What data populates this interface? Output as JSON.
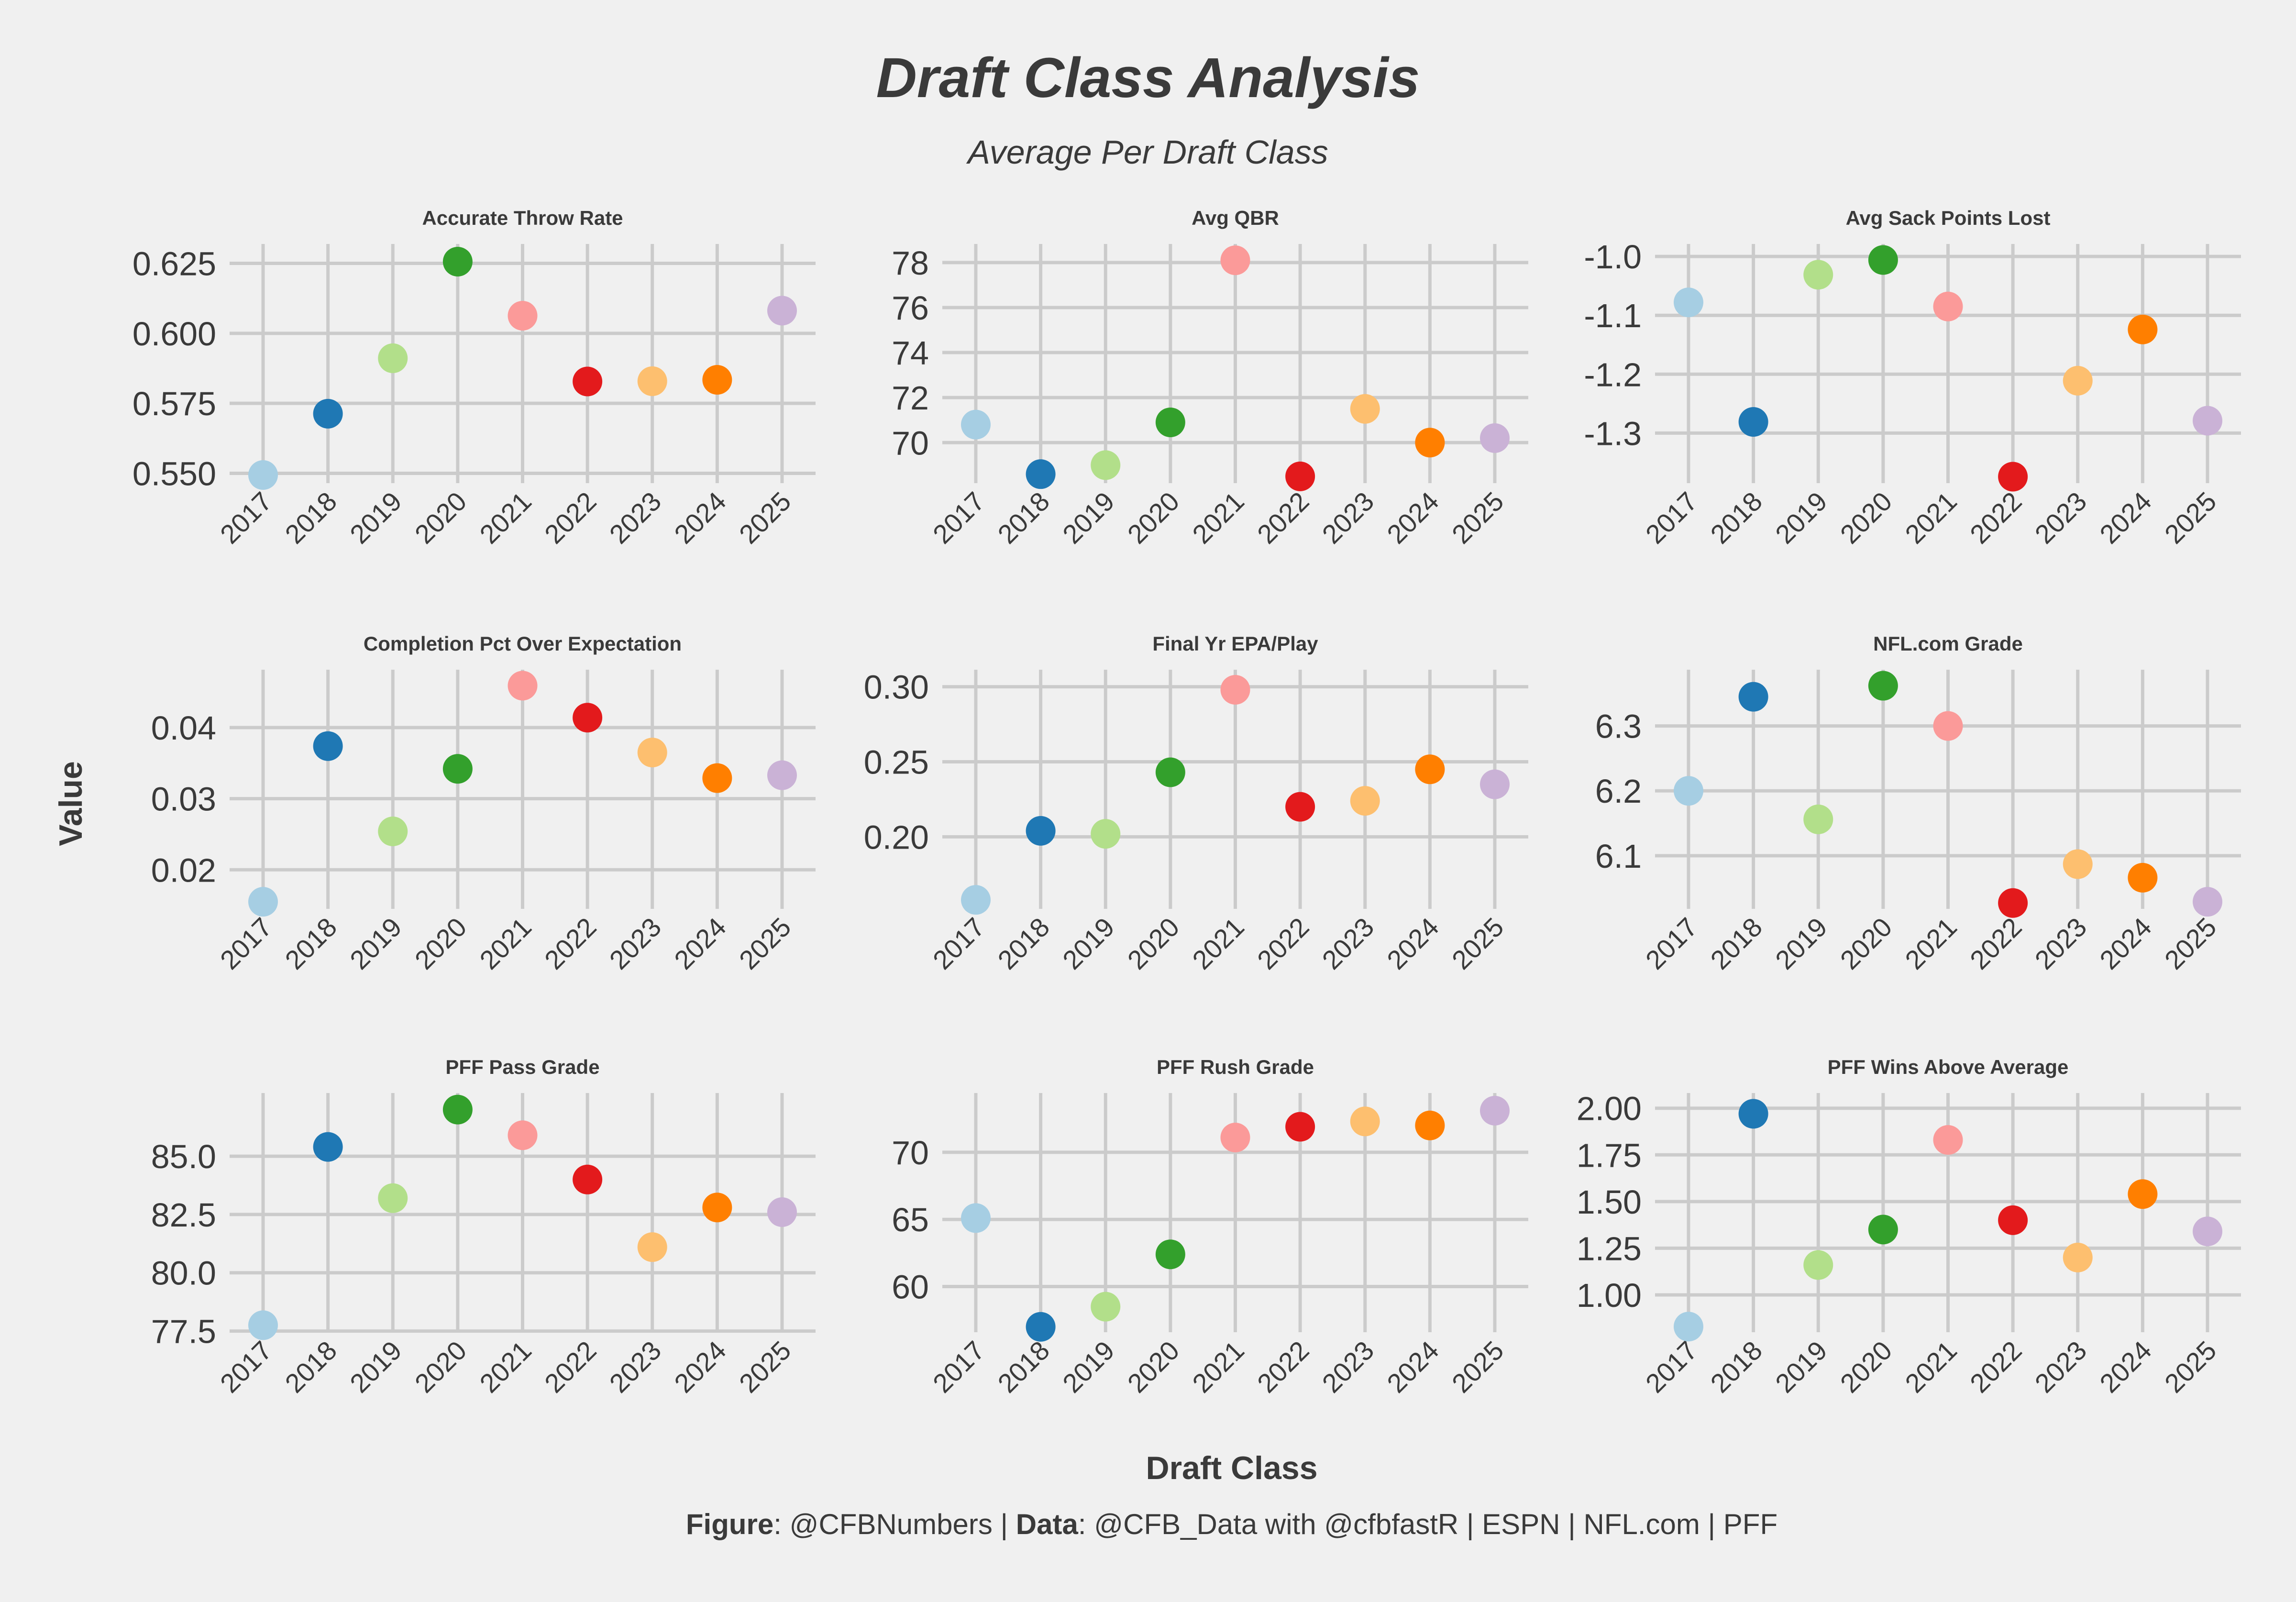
{
  "header": {
    "title": "Draft Class Analysis",
    "subtitle": "Average Per Draft Class"
  },
  "axes": {
    "ylabel": "Value",
    "xlabel": "Draft Class"
  },
  "caption": {
    "figure_label": "Figure",
    "figure_text": ": @CFBNumbers | ",
    "data_label": "Data",
    "data_text": ": @CFB_Data with @cfbfastR | ESPN | NFL.com | PFF"
  },
  "colors": {
    "2017": "#a6cee3",
    "2018": "#1f78b4",
    "2019": "#b2df8a",
    "2020": "#33a02c",
    "2021": "#fb9a99",
    "2022": "#e31a1c",
    "2023": "#fdbf6f",
    "2024": "#ff7f00",
    "2025": "#cab2d6",
    "grid": "#cbcbcb",
    "background": "#f0f0f0"
  },
  "chart_data": [
    {
      "type": "scatter",
      "title": "Accurate Throw Rate",
      "x": [
        "2017",
        "2018",
        "2019",
        "2020",
        "2021",
        "2022",
        "2023",
        "2024",
        "2025"
      ],
      "values": [
        0.5494,
        0.5713,
        0.5911,
        0.6256,
        0.6063,
        0.5828,
        0.5829,
        0.5834,
        0.6081
      ],
      "ylim": [
        0.5465,
        0.6285
      ],
      "yticks": [
        0.55,
        0.575,
        0.6,
        0.625
      ],
      "ytick_labels": [
        "0.550",
        "0.575",
        "0.600",
        "0.625"
      ],
      "grid": true
    },
    {
      "type": "scatter",
      "title": "Avg QBR",
      "x": [
        "2017",
        "2018",
        "2019",
        "2020",
        "2021",
        "2022",
        "2023",
        "2024",
        "2025"
      ],
      "values": [
        70.8,
        68.6,
        69.0,
        70.9,
        78.1,
        68.5,
        71.5,
        70.0,
        70.2
      ],
      "ylim": [
        68.2,
        78.4
      ],
      "yticks": [
        70,
        72,
        74,
        76,
        78
      ],
      "ytick_labels": [
        "70",
        "72",
        "74",
        "76",
        "78"
      ],
      "grid": true
    },
    {
      "type": "scatter",
      "title": "Avg Sack Points Lost",
      "x": [
        "2017",
        "2018",
        "2019",
        "2020",
        "2021",
        "2022",
        "2023",
        "2024",
        "2025"
      ],
      "values": [
        -1.078,
        -1.281,
        -1.031,
        -1.006,
        -1.085,
        -1.374,
        -1.211,
        -1.124,
        -1.279
      ],
      "ylim": [
        -1.385,
        -0.995
      ],
      "yticks": [
        -1.0,
        -1.1,
        -1.2,
        -1.3
      ],
      "ytick_labels": [
        "-1.0",
        "-1.1",
        "-1.2",
        "-1.3"
      ],
      "grid": true
    },
    {
      "type": "scatter",
      "title": "Completion Pct Over Expectation",
      "x": [
        "2017",
        "2018",
        "2019",
        "2020",
        "2021",
        "2022",
        "2023",
        "2024",
        "2025"
      ],
      "values": [
        0.0155,
        0.0374,
        0.0254,
        0.0342,
        0.0459,
        0.0414,
        0.0365,
        0.0329,
        0.0333
      ],
      "ylim": [
        0.0145,
        0.0468
      ],
      "yticks": [
        0.02,
        0.03,
        0.04
      ],
      "ytick_labels": [
        "0.02",
        "0.03",
        "0.04"
      ],
      "grid": true
    },
    {
      "type": "scatter",
      "title": "Final Yr EPA/Play",
      "x": [
        "2017",
        "2018",
        "2019",
        "2020",
        "2021",
        "2022",
        "2023",
        "2024",
        "2025"
      ],
      "values": [
        0.158,
        0.204,
        0.202,
        0.243,
        0.298,
        0.22,
        0.224,
        0.245,
        0.235
      ],
      "ylim": [
        0.152,
        0.305
      ],
      "yticks": [
        0.2,
        0.25,
        0.3
      ],
      "ytick_labels": [
        "0.20",
        "0.25",
        "0.30"
      ],
      "grid": true
    },
    {
      "type": "scatter",
      "title": "NFL.com Grade",
      "x": [
        "2017",
        "2018",
        "2019",
        "2020",
        "2021",
        "2022",
        "2023",
        "2024",
        "2025"
      ],
      "values": [
        6.2,
        6.345,
        6.156,
        6.362,
        6.3,
        6.027,
        6.087,
        6.066,
        6.029
      ],
      "ylim": [
        6.018,
        6.372
      ],
      "yticks": [
        6.1,
        6.2,
        6.3
      ],
      "ytick_labels": [
        "6.1",
        "6.2",
        "6.3"
      ],
      "grid": true
    },
    {
      "type": "scatter",
      "title": "PFF Pass Grade",
      "x": [
        "2017",
        "2018",
        "2019",
        "2020",
        "2021",
        "2022",
        "2023",
        "2024",
        "2025"
      ],
      "values": [
        77.75,
        85.4,
        83.2,
        87.0,
        85.9,
        84.0,
        81.1,
        82.8,
        82.6
      ],
      "ylim": [
        77.45,
        87.3
      ],
      "yticks": [
        77.5,
        80.0,
        82.5,
        85.0
      ],
      "ytick_labels": [
        "77.5",
        "80.0",
        "82.5",
        "85.0"
      ],
      "grid": true
    },
    {
      "type": "scatter",
      "title": "PFF Rush Grade",
      "x": [
        "2017",
        "2018",
        "2019",
        "2020",
        "2021",
        "2022",
        "2023",
        "2024",
        "2025"
      ],
      "values": [
        65.1,
        57.0,
        58.5,
        62.4,
        71.1,
        71.9,
        72.3,
        72.0,
        73.1
      ],
      "ylim": [
        56.6,
        73.7
      ],
      "yticks": [
        60,
        65,
        70
      ],
      "ytick_labels": [
        "60",
        "65",
        "70"
      ],
      "grid": true
    },
    {
      "type": "scatter",
      "title": "PFF Wins Above Average",
      "x": [
        "2017",
        "2018",
        "2019",
        "2020",
        "2021",
        "2022",
        "2023",
        "2024",
        "2025"
      ],
      "values": [
        0.83,
        1.97,
        1.16,
        1.35,
        1.83,
        1.4,
        1.2,
        1.54,
        1.34
      ],
      "ylim": [
        0.8,
        2.03
      ],
      "yticks": [
        1.0,
        1.25,
        1.5,
        1.75,
        2.0
      ],
      "ytick_labels": [
        "1.00",
        "1.25",
        "1.50",
        "1.75",
        "2.00"
      ],
      "grid": true
    }
  ]
}
